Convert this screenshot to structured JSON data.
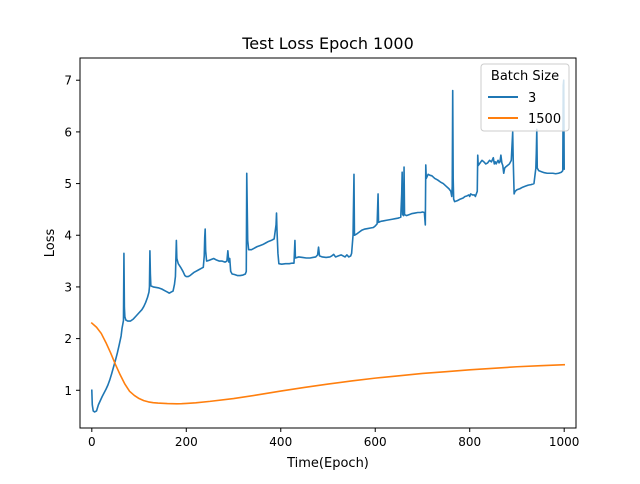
{
  "chart_data": {
    "type": "line",
    "title": "Test Loss Epoch 1000",
    "xlabel": "Time(Epoch)",
    "ylabel": "Loss",
    "xlim": [
      -25,
      1025
    ],
    "ylim": [
      0.27,
      7.43
    ],
    "xticks": [
      0,
      200,
      400,
      600,
      800,
      1000
    ],
    "yticks": [
      1,
      2,
      3,
      4,
      5,
      6,
      7
    ],
    "grid": false,
    "legend": {
      "title": "Batch Size",
      "placement": "top-right"
    },
    "series": [
      {
        "name": "3",
        "color": "#1f77b4",
        "points": [
          [
            0,
            1.0
          ],
          [
            1,
            0.72
          ],
          [
            3,
            0.6
          ],
          [
            6,
            0.58
          ],
          [
            10,
            0.6
          ],
          [
            14,
            0.72
          ],
          [
            18,
            0.8
          ],
          [
            22,
            0.88
          ],
          [
            26,
            0.95
          ],
          [
            30,
            1.02
          ],
          [
            34,
            1.1
          ],
          [
            38,
            1.2
          ],
          [
            42,
            1.32
          ],
          [
            46,
            1.45
          ],
          [
            50,
            1.58
          ],
          [
            54,
            1.72
          ],
          [
            58,
            1.88
          ],
          [
            62,
            2.05
          ],
          [
            64,
            2.2
          ],
          [
            66,
            2.3
          ],
          [
            67,
            2.35
          ],
          [
            68,
            3.65
          ],
          [
            69,
            2.6
          ],
          [
            70,
            2.42
          ],
          [
            72,
            2.36
          ],
          [
            76,
            2.34
          ],
          [
            82,
            2.34
          ],
          [
            88,
            2.38
          ],
          [
            94,
            2.44
          ],
          [
            100,
            2.5
          ],
          [
            106,
            2.56
          ],
          [
            110,
            2.62
          ],
          [
            114,
            2.7
          ],
          [
            118,
            2.8
          ],
          [
            121,
            2.9
          ],
          [
            122,
            3.0
          ],
          [
            123,
            3.7
          ],
          [
            124,
            3.25
          ],
          [
            125,
            3.02
          ],
          [
            130,
            3.0
          ],
          [
            136,
            2.99
          ],
          [
            142,
            2.98
          ],
          [
            148,
            2.96
          ],
          [
            154,
            2.93
          ],
          [
            160,
            2.9
          ],
          [
            164,
            2.88
          ],
          [
            168,
            2.9
          ],
          [
            172,
            2.92
          ],
          [
            175,
            3.05
          ],
          [
            177,
            3.2
          ],
          [
            179,
            3.9
          ],
          [
            180,
            3.55
          ],
          [
            183,
            3.45
          ],
          [
            188,
            3.38
          ],
          [
            193,
            3.3
          ],
          [
            197,
            3.22
          ],
          [
            200,
            3.2
          ],
          [
            204,
            3.2
          ],
          [
            208,
            3.22
          ],
          [
            212,
            3.25
          ],
          [
            216,
            3.28
          ],
          [
            220,
            3.3
          ],
          [
            226,
            3.33
          ],
          [
            232,
            3.36
          ],
          [
            236,
            3.38
          ],
          [
            238,
            3.6
          ],
          [
            239,
            3.95
          ],
          [
            240,
            4.12
          ],
          [
            241,
            3.7
          ],
          [
            243,
            3.5
          ],
          [
            250,
            3.52
          ],
          [
            258,
            3.55
          ],
          [
            264,
            3.52
          ],
          [
            270,
            3.5
          ],
          [
            276,
            3.5
          ],
          [
            282,
            3.48
          ],
          [
            286,
            3.5
          ],
          [
            288,
            3.7
          ],
          [
            290,
            3.48
          ],
          [
            292,
            3.55
          ],
          [
            294,
            3.3
          ],
          [
            297,
            3.25
          ],
          [
            302,
            3.24
          ],
          [
            308,
            3.22
          ],
          [
            314,
            3.22
          ],
          [
            320,
            3.23
          ],
          [
            325,
            3.25
          ],
          [
            327,
            3.3
          ],
          [
            328,
            5.2
          ],
          [
            330,
            3.9
          ],
          [
            332,
            3.72
          ],
          [
            338,
            3.72
          ],
          [
            344,
            3.75
          ],
          [
            350,
            3.78
          ],
          [
            356,
            3.8
          ],
          [
            362,
            3.82
          ],
          [
            368,
            3.85
          ],
          [
            374,
            3.88
          ],
          [
            380,
            3.9
          ],
          [
            386,
            3.93
          ],
          [
            390,
            4.2
          ],
          [
            391,
            4.43
          ],
          [
            392,
            4.1
          ],
          [
            394,
            3.65
          ],
          [
            396,
            3.45
          ],
          [
            402,
            3.44
          ],
          [
            410,
            3.45
          ],
          [
            418,
            3.45
          ],
          [
            424,
            3.46
          ],
          [
            428,
            3.46
          ],
          [
            430,
            3.9
          ],
          [
            431,
            3.56
          ],
          [
            438,
            3.58
          ],
          [
            446,
            3.57
          ],
          [
            454,
            3.56
          ],
          [
            462,
            3.56
          ],
          [
            468,
            3.57
          ],
          [
            474,
            3.58
          ],
          [
            478,
            3.62
          ],
          [
            480,
            3.77
          ],
          [
            482,
            3.6
          ],
          [
            488,
            3.58
          ],
          [
            496,
            3.57
          ],
          [
            504,
            3.58
          ],
          [
            508,
            3.6
          ],
          [
            512,
            3.63
          ],
          [
            516,
            3.58
          ],
          [
            522,
            3.6
          ],
          [
            528,
            3.62
          ],
          [
            532,
            3.6
          ],
          [
            536,
            3.58
          ],
          [
            540,
            3.62
          ],
          [
            544,
            3.58
          ],
          [
            548,
            3.6
          ],
          [
            550,
            3.65
          ],
          [
            553,
            4.0
          ],
          [
            555,
            5.18
          ],
          [
            556,
            4.0
          ],
          [
            560,
            4.02
          ],
          [
            566,
            4.06
          ],
          [
            572,
            4.1
          ],
          [
            578,
            4.12
          ],
          [
            584,
            4.13
          ],
          [
            590,
            4.14
          ],
          [
            596,
            4.15
          ],
          [
            600,
            4.18
          ],
          [
            604,
            4.22
          ],
          [
            606,
            4.8
          ],
          [
            607,
            4.25
          ],
          [
            612,
            4.27
          ],
          [
            618,
            4.28
          ],
          [
            624,
            4.29
          ],
          [
            630,
            4.3
          ],
          [
            636,
            4.31
          ],
          [
            642,
            4.32
          ],
          [
            648,
            4.33
          ],
          [
            654,
            4.35
          ],
          [
            656,
            4.8
          ],
          [
            657,
            5.22
          ],
          [
            658,
            4.4
          ],
          [
            660,
            4.38
          ],
          [
            661,
            5.32
          ],
          [
            662,
            4.4
          ],
          [
            666,
            4.38
          ],
          [
            672,
            4.4
          ],
          [
            678,
            4.42
          ],
          [
            684,
            4.43
          ],
          [
            690,
            4.44
          ],
          [
            696,
            4.44
          ],
          [
            700,
            4.45
          ],
          [
            704,
            4.44
          ],
          [
            706,
            4.2
          ],
          [
            707,
            5.36
          ],
          [
            708,
            5.1
          ],
          [
            712,
            5.18
          ],
          [
            716,
            5.16
          ],
          [
            720,
            5.15
          ],
          [
            726,
            5.1
          ],
          [
            732,
            5.07
          ],
          [
            738,
            5.03
          ],
          [
            744,
            5.0
          ],
          [
            750,
            4.95
          ],
          [
            756,
            4.9
          ],
          [
            760,
            4.85
          ],
          [
            762,
            4.75
          ],
          [
            763,
            4.95
          ],
          [
            764,
            6.8
          ],
          [
            765,
            5.1
          ],
          [
            766,
            4.7
          ],
          [
            768,
            4.65
          ],
          [
            774,
            4.67
          ],
          [
            780,
            4.7
          ],
          [
            786,
            4.72
          ],
          [
            790,
            4.75
          ],
          [
            794,
            4.76
          ],
          [
            798,
            4.78
          ],
          [
            800,
            4.75
          ],
          [
            802,
            4.8
          ],
          [
            806,
            4.78
          ],
          [
            810,
            4.78
          ],
          [
            812,
            4.75
          ],
          [
            814,
            4.8
          ],
          [
            816,
            4.85
          ],
          [
            817,
            5.55
          ],
          [
            818,
            5.35
          ],
          [
            822,
            5.4
          ],
          [
            826,
            5.45
          ],
          [
            830,
            5.42
          ],
          [
            834,
            5.38
          ],
          [
            838,
            5.4
          ],
          [
            842,
            5.45
          ],
          [
            846,
            5.42
          ],
          [
            850,
            5.5
          ],
          [
            852,
            5.38
          ],
          [
            854,
            5.42
          ],
          [
            856,
            5.38
          ],
          [
            858,
            5.42
          ],
          [
            860,
            5.45
          ],
          [
            862,
            5.4
          ],
          [
            864,
            5.42
          ],
          [
            866,
            5.55
          ],
          [
            868,
            5.4
          ],
          [
            870,
            5.35
          ],
          [
            872,
            5.2
          ],
          [
            874,
            5.3
          ],
          [
            876,
            5.32
          ],
          [
            880,
            5.35
          ],
          [
            884,
            5.38
          ],
          [
            888,
            5.45
          ],
          [
            891,
            6.0
          ],
          [
            892,
            5.5
          ],
          [
            894,
            4.8
          ],
          [
            896,
            4.85
          ],
          [
            900,
            4.88
          ],
          [
            906,
            4.9
          ],
          [
            912,
            4.93
          ],
          [
            918,
            4.95
          ],
          [
            924,
            4.97
          ],
          [
            930,
            4.98
          ],
          [
            936,
            5.0
          ],
          [
            940,
            5.3
          ],
          [
            941,
            5.6
          ],
          [
            942,
            6.05
          ],
          [
            943,
            5.3
          ],
          [
            946,
            5.25
          ],
          [
            952,
            5.23
          ],
          [
            958,
            5.21
          ],
          [
            964,
            5.2
          ],
          [
            970,
            5.2
          ],
          [
            976,
            5.2
          ],
          [
            982,
            5.19
          ],
          [
            988,
            5.2
          ],
          [
            994,
            5.22
          ],
          [
            997,
            5.25
          ],
          [
            998,
            6.9
          ],
          [
            999,
            7.0
          ],
          [
            1000,
            5.28
          ]
        ]
      },
      {
        "name": "1500",
        "color": "#ff7f0e",
        "points": [
          [
            0,
            2.3
          ],
          [
            10,
            2.22
          ],
          [
            20,
            2.1
          ],
          [
            30,
            1.92
          ],
          [
            40,
            1.72
          ],
          [
            50,
            1.5
          ],
          [
            60,
            1.3
          ],
          [
            70,
            1.12
          ],
          [
            80,
            0.98
          ],
          [
            90,
            0.9
          ],
          [
            100,
            0.84
          ],
          [
            110,
            0.8
          ],
          [
            120,
            0.775
          ],
          [
            130,
            0.76
          ],
          [
            140,
            0.752
          ],
          [
            150,
            0.747
          ],
          [
            160,
            0.742
          ],
          [
            170,
            0.74
          ],
          [
            180,
            0.738
          ],
          [
            190,
            0.74
          ],
          [
            200,
            0.745
          ],
          [
            220,
            0.758
          ],
          [
            250,
            0.785
          ],
          [
            300,
            0.84
          ],
          [
            350,
            0.91
          ],
          [
            400,
            0.985
          ],
          [
            450,
            1.055
          ],
          [
            500,
            1.12
          ],
          [
            550,
            1.18
          ],
          [
            600,
            1.235
          ],
          [
            650,
            1.28
          ],
          [
            700,
            1.325
          ],
          [
            750,
            1.36
          ],
          [
            800,
            1.395
          ],
          [
            850,
            1.425
          ],
          [
            900,
            1.455
          ],
          [
            950,
            1.475
          ],
          [
            1000,
            1.495
          ]
        ]
      }
    ]
  }
}
